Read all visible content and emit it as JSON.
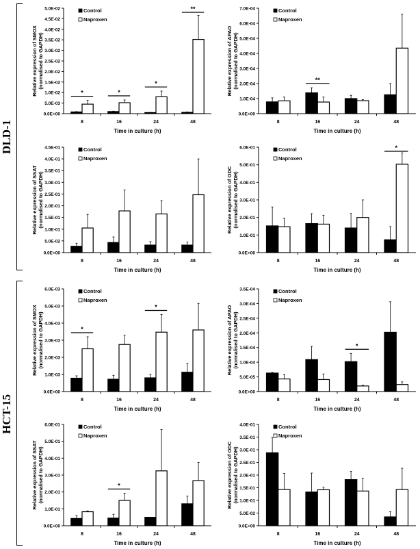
{
  "groups": [
    {
      "label": "DLD-1"
    },
    {
      "label": "HCT-15"
    }
  ],
  "chart_data": [
    {
      "type": "bar",
      "group": "DLD-1",
      "ylabel": [
        "Relative expression of SMOX",
        "(normalised to GAPDH)"
      ],
      "xlabel": "Time in culture (h)",
      "categories": [
        "8",
        "16",
        "24",
        "48"
      ],
      "ylim": [
        0,
        0.05
      ],
      "yticks": [
        "0.0E+00",
        "5.0E-03",
        "1.0E-02",
        "1.5E-02",
        "2.0E-02",
        "2.5E-02",
        "3.0E-02",
        "3.5E-02",
        "4.0E-02",
        "4.5E-02",
        "5.0E-02"
      ],
      "series": [
        {
          "name": "Control",
          "color": "#000000",
          "values": [
            0.0008,
            0.001,
            0.0005,
            0.0006
          ],
          "err_top": [
            0.001,
            0.0012,
            0.0006,
            0.0008
          ]
        },
        {
          "name": "Naproxen",
          "color": "#ffffff",
          "values": [
            0.0045,
            0.0052,
            0.008,
            0.0352
          ],
          "err_top": [
            0.0063,
            0.0065,
            0.0107,
            0.0466
          ]
        }
      ],
      "significance": [
        {
          "category": "8",
          "mark": "*"
        },
        {
          "category": "16",
          "mark": "*"
        },
        {
          "category": "24",
          "mark": "*"
        },
        {
          "category": "48",
          "mark": "**"
        }
      ]
    },
    {
      "type": "bar",
      "group": "DLD-1",
      "ylabel": [
        "Relative expression of APAO",
        "(normalised to GAPDH)"
      ],
      "xlabel": "Time in culture (h)",
      "categories": [
        "8",
        "16",
        "24",
        "48"
      ],
      "ylim": [
        0,
        0.0007
      ],
      "yticks": [
        "0.0E+00",
        "1.0E-04",
        "2.0E-04",
        "3.0E-04",
        "4.0E-04",
        "5.0E-04",
        "6.0E-04",
        "7.0E-04"
      ],
      "series": [
        {
          "name": "Control",
          "color": "#000000",
          "values": [
            7.8e-05,
            0.000138,
            0.0001,
            0.000125
          ],
          "err_top": [
            0.000105,
            0.000172,
            0.000122,
            0.0002
          ]
        },
        {
          "name": "Naproxen",
          "color": "#ffffff",
          "values": [
            8.5e-05,
            7.7e-05,
            8.6e-05,
            0.000435
          ],
          "err_top": [
            0.00011,
            0.00011,
            9.3e-05,
            0.00066
          ]
        }
      ],
      "significance": [
        {
          "category": "16",
          "mark": "**"
        }
      ]
    },
    {
      "type": "bar",
      "group": "DLD-1",
      "ylabel": [
        "Relative expression of SSAT",
        "(normalised to GAPDH)"
      ],
      "xlabel": "Time in culture (h)",
      "categories": [
        "8",
        "16",
        "24",
        "48"
      ],
      "ylim": [
        0,
        0.45
      ],
      "yticks": [
        "0.0E+00",
        "5.0E-02",
        "1.0E-01",
        "1.5E-01",
        "2.0E-01",
        "2.5E-01",
        "3.0E-01",
        "3.5E-01",
        "4.0E-01",
        "4.5E-01"
      ],
      "series": [
        {
          "name": "Control",
          "color": "#000000",
          "values": [
            0.027,
            0.043,
            0.032,
            0.032
          ],
          "err_top": [
            0.04,
            0.067,
            0.047,
            0.045
          ]
        },
        {
          "name": "Naproxen",
          "color": "#ffffff",
          "values": [
            0.105,
            0.178,
            0.165,
            0.247
          ],
          "err_top": [
            0.163,
            0.267,
            0.222,
            0.4
          ]
        }
      ],
      "significance": []
    },
    {
      "type": "bar",
      "group": "DLD-1",
      "ylabel": [
        "Relative expression of ODC",
        "(normalised to GAPDH)"
      ],
      "xlabel": "Time in culture (h)",
      "categories": [
        "8",
        "16",
        "24",
        "48"
      ],
      "ylim": [
        0,
        0.6
      ],
      "yticks": [
        "0.0E+00",
        "1.0E-01",
        "2.0E-01",
        "3.0E-01",
        "4.0E-01",
        "5.0E-01",
        "6.0E-01"
      ],
      "series": [
        {
          "name": "Control",
          "color": "#000000",
          "values": [
            0.152,
            0.165,
            0.14,
            0.073
          ],
          "err_top": [
            0.26,
            0.222,
            0.223,
            0.148
          ]
        },
        {
          "name": "Naproxen",
          "color": "#ffffff",
          "values": [
            0.147,
            0.162,
            0.2,
            0.503
          ],
          "err_top": [
            0.195,
            0.213,
            0.3,
            0.568
          ]
        }
      ],
      "significance": [
        {
          "category": "48",
          "mark": "*"
        }
      ]
    },
    {
      "type": "bar",
      "group": "HCT-15",
      "ylabel": [
        "Relative expression of SMOX",
        "(normalised to GAPDH)"
      ],
      "xlabel": "Time in culture (h)",
      "categories": [
        "8",
        "16",
        "24",
        "48"
      ],
      "ylim": [
        0,
        0.006
      ],
      "yticks": [
        "0.0E+00",
        "1.0E-03",
        "2.0E-03",
        "3.0E-03",
        "4.0E-03",
        "5.0E-03",
        "6.0E-03"
      ],
      "series": [
        {
          "name": "Control",
          "color": "#000000",
          "values": [
            0.00078,
            0.00072,
            0.0008,
            0.00113
          ],
          "err_top": [
            0.00092,
            0.00095,
            0.001,
            0.00165
          ]
        },
        {
          "name": "Naproxen",
          "color": "#ffffff",
          "values": [
            0.0025,
            0.00275,
            0.00347,
            0.0036
          ],
          "err_top": [
            0.0032,
            0.0033,
            0.0045,
            0.00515
          ]
        }
      ],
      "significance": [
        {
          "category": "8",
          "mark": "*"
        },
        {
          "category": "24",
          "mark": "*"
        }
      ]
    },
    {
      "type": "bar",
      "group": "HCT-15",
      "ylabel": [
        "Relative expression of APAO",
        "(normalised to GAPDH)"
      ],
      "xlabel": "Time in culture (h)",
      "categories": [
        "8",
        "16",
        "24",
        "48"
      ],
      "ylim": [
        0,
        0.00035
      ],
      "yticks": [
        "0.0E+00",
        "5.0E-05",
        "1.0E-04",
        "1.5E-04",
        "2.0E-04",
        "2.5E-04",
        "3.0E-04",
        "3.5E-04"
      ],
      "series": [
        {
          "name": "Control",
          "color": "#000000",
          "values": [
            6.3e-05,
            0.000109,
            0.000102,
            0.000202
          ],
          "err_top": [
            6.5e-05,
            0.000154,
            0.00013,
            0.000306
          ]
        },
        {
          "name": "Naproxen",
          "color": "#ffffff",
          "values": [
            4.3e-05,
            4.1e-05,
            1.9e-05,
            2.4e-05
          ],
          "err_top": [
            5.8e-05,
            6e-05,
            2.2e-05,
            3.3e-05
          ]
        }
      ],
      "significance": [
        {
          "category": "24",
          "mark": "*"
        }
      ]
    },
    {
      "type": "bar",
      "group": "HCT-15",
      "ylabel": [
        "Relative expression of SSAT",
        "(normalised to GAPDH)"
      ],
      "xlabel": "Time in culture (h)",
      "categories": [
        "8",
        "16",
        "24",
        "48"
      ],
      "ylim": [
        0,
        0.6
      ],
      "yticks": [
        "0.0E+00",
        "1.0E-01",
        "2.0E-01",
        "3.0E-01",
        "4.0E-01",
        "5.0E-01",
        "6.0E-01"
      ],
      "series": [
        {
          "name": "Control",
          "color": "#000000",
          "values": [
            0.043,
            0.045,
            0.05,
            0.13
          ],
          "err_top": [
            0.06,
            0.068,
            0.051,
            0.175
          ]
        },
        {
          "name": "Naproxen",
          "color": "#ffffff",
          "values": [
            0.083,
            0.15,
            0.325,
            0.267
          ],
          "err_top": [
            0.088,
            0.193,
            0.57,
            0.375
          ]
        }
      ],
      "significance": [
        {
          "category": "16",
          "mark": "*"
        }
      ]
    },
    {
      "type": "bar",
      "group": "HCT-15",
      "ylabel": [
        "Relative expression of ODC",
        "(normalised to GAPDH)"
      ],
      "xlabel": "Time in culture (h)",
      "categories": [
        "8",
        "16",
        "24",
        "48"
      ],
      "ylim": [
        0,
        0.4
      ],
      "yticks": [
        "0.0E+00",
        "5.0E-02",
        "1.0E-01",
        "1.5E-01",
        "2.0E-01",
        "2.5E-01",
        "3.0E-01",
        "3.5E-01",
        "4.0E-01"
      ],
      "series": [
        {
          "name": "Control",
          "color": "#000000",
          "values": [
            0.288,
            0.133,
            0.182,
            0.035
          ],
          "err_top": [
            0.348,
            0.208,
            0.215,
            0.055
          ]
        },
        {
          "name": "Naproxen",
          "color": "#ffffff",
          "values": [
            0.143,
            0.142,
            0.137,
            0.143
          ],
          "err_top": [
            0.207,
            0.152,
            0.188,
            0.227
          ]
        }
      ],
      "significance": []
    }
  ]
}
